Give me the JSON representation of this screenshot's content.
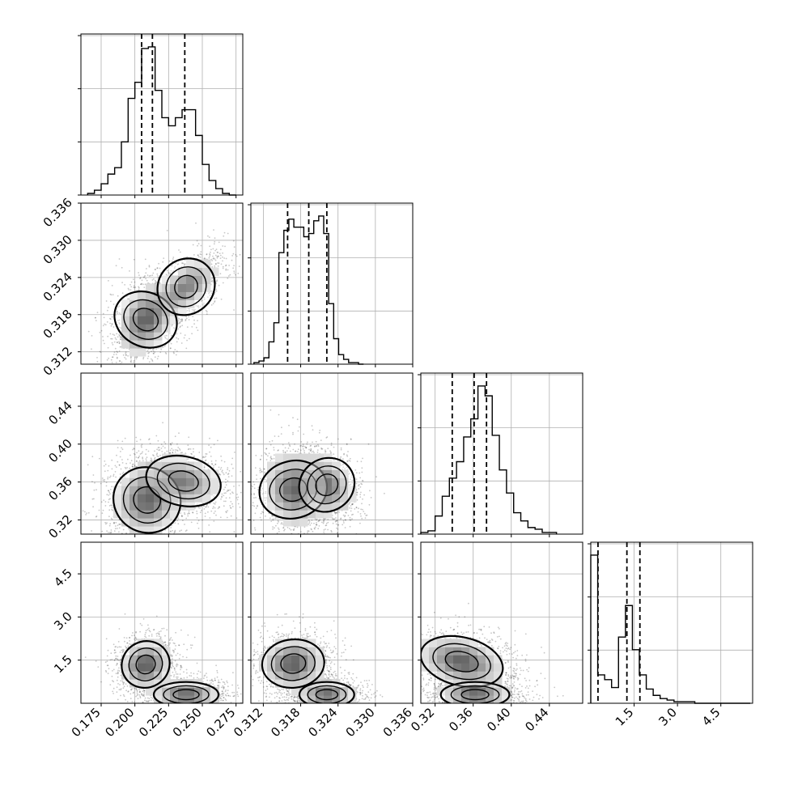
{
  "chart_data": {
    "type": "corner",
    "parameters": [
      {
        "key": "p0",
        "range": [
          0.16,
          0.28
        ],
        "ticks": [
          0.175,
          0.2,
          0.225,
          0.25,
          0.275
        ],
        "tick_labels": [
          "0.175",
          "0.200",
          "0.225",
          "0.250",
          "0.275"
        ],
        "quantiles": [
          0.205,
          0.213,
          0.237
        ]
      },
      {
        "key": "p1",
        "range": [
          0.31,
          0.336
        ],
        "ticks": [
          0.312,
          0.318,
          0.324,
          0.33,
          0.336
        ],
        "tick_labels": [
          "0.312",
          "0.318",
          "0.324",
          "0.330",
          "0.336"
        ],
        "quantiles": [
          0.3159,
          0.3193,
          0.3222
        ]
      },
      {
        "key": "p2",
        "range": [
          0.305,
          0.475
        ],
        "ticks": [
          0.32,
          0.36,
          0.4,
          0.44
        ],
        "tick_labels": [
          "0.32",
          "0.36",
          "0.40",
          "0.44"
        ],
        "quantiles": [
          0.338,
          0.361,
          0.374
        ]
      },
      {
        "key": "p3",
        "range": [
          0.0,
          5.6
        ],
        "ticks": [
          1.5,
          3.0,
          4.5
        ],
        "tick_labels": [
          "1.5",
          "3.0",
          "4.5"
        ],
        "quantiles": [
          0.25,
          1.25,
          1.7
        ]
      }
    ],
    "histograms": [
      {
        "param": 0,
        "bins": [
          0.165,
          0.17,
          0.175,
          0.18,
          0.185,
          0.19,
          0.195,
          0.2,
          0.205,
          0.21,
          0.215,
          0.22,
          0.225,
          0.23,
          0.235,
          0.24,
          0.245,
          0.25,
          0.255,
          0.26,
          0.265,
          0.27,
          0.275
        ],
        "counts": [
          1,
          3,
          7,
          13,
          17,
          33,
          60,
          70,
          91,
          92,
          65,
          48,
          43,
          48,
          53,
          53,
          37,
          19,
          9,
          4,
          1,
          0
        ]
      },
      {
        "param": 1,
        "bins": [
          0.3105,
          0.3113,
          0.3121,
          0.3129,
          0.3137,
          0.3145,
          0.3153,
          0.3161,
          0.3169,
          0.3177,
          0.3185,
          0.3193,
          0.3201,
          0.3209,
          0.3217,
          0.3225,
          0.3233,
          0.3241,
          0.3249,
          0.3257,
          0.3265,
          0.3273,
          0.3281
        ],
        "counts": [
          1,
          2,
          4,
          14,
          26,
          70,
          84,
          91,
          86,
          86,
          80,
          82,
          90,
          93,
          82,
          38,
          16,
          6,
          3,
          1,
          1,
          0
        ]
      },
      {
        "param": 2,
        "bins": [
          0.305,
          0.3125,
          0.32,
          0.3275,
          0.335,
          0.3425,
          0.35,
          0.3575,
          0.365,
          0.3725,
          0.38,
          0.3875,
          0.395,
          0.4025,
          0.41,
          0.4175,
          0.425,
          0.4325,
          0.44,
          0.4475
        ],
        "counts": [
          1,
          2,
          11,
          23,
          34,
          44,
          59,
          70,
          90,
          84,
          60,
          39,
          25,
          13,
          8,
          4,
          3,
          1,
          1
        ]
      },
      {
        "param": 3,
        "bins": [
          0.0,
          0.24,
          0.48,
          0.72,
          0.96,
          1.2,
          1.44,
          1.68,
          1.92,
          2.16,
          2.4,
          2.64,
          2.88,
          3.12,
          3.36,
          3.6,
          3.84,
          4.08,
          4.32,
          4.56,
          4.8,
          5.04,
          5.28,
          5.52
        ],
        "counts": [
          94,
          18,
          15,
          10,
          42,
          62,
          34,
          18,
          9,
          5,
          3,
          2,
          1,
          1,
          1,
          0,
          0,
          0,
          0,
          0,
          0,
          0,
          0
        ]
      }
    ],
    "pairs": [
      {
        "x": 0,
        "y": 1,
        "clusters": [
          {
            "cx": 0.208,
            "cy": 0.3172,
            "sx": 0.01,
            "sy": 0.0026,
            "rho": 0.25,
            "w": 1
          },
          {
            "cx": 0.238,
            "cy": 0.3225,
            "sx": 0.011,
            "sy": 0.0022,
            "rho": 0.55,
            "w": 0.8
          }
        ]
      },
      {
        "x": 0,
        "y": 2,
        "clusters": [
          {
            "cx": 0.209,
            "cy": 0.341,
            "sx": 0.012,
            "sy": 0.018,
            "rho": 0.1,
            "w": 1
          },
          {
            "cx": 0.236,
            "cy": 0.361,
            "sx": 0.014,
            "sy": 0.013,
            "rho": -0.2,
            "w": 0.8
          }
        ]
      },
      {
        "x": 1,
        "y": 2,
        "clusters": [
          {
            "cx": 0.3168,
            "cy": 0.352,
            "sx": 0.0023,
            "sy": 0.018,
            "rho": -0.1,
            "w": 1
          },
          {
            "cx": 0.3222,
            "cy": 0.357,
            "sx": 0.0021,
            "sy": 0.015,
            "rho": -0.25,
            "w": 0.9
          }
        ]
      },
      {
        "x": 0,
        "y": 3,
        "clusters": [
          {
            "cx": 0.208,
            "cy": 1.35,
            "sx": 0.009,
            "sy": 0.4,
            "rho": 0.1,
            "w": 1
          },
          {
            "cx": 0.238,
            "cy": 0.3,
            "sx": 0.012,
            "sy": 0.22,
            "rho": 0,
            "w": 1
          }
        ]
      },
      {
        "x": 1,
        "y": 3,
        "clusters": [
          {
            "cx": 0.3168,
            "cy": 1.38,
            "sx": 0.0025,
            "sy": 0.42,
            "rho": 0.05,
            "w": 1
          },
          {
            "cx": 0.3222,
            "cy": 0.3,
            "sx": 0.0022,
            "sy": 0.22,
            "rho": 0,
            "w": 1
          }
        ]
      },
      {
        "x": 2,
        "y": 3,
        "clusters": [
          {
            "cx": 0.348,
            "cy": 1.45,
            "sx": 0.022,
            "sy": 0.42,
            "rho": -0.3,
            "w": 1
          },
          {
            "cx": 0.362,
            "cy": 0.3,
            "sx": 0.018,
            "sy": 0.22,
            "rho": 0,
            "w": 1
          }
        ]
      }
    ],
    "grid": true,
    "colors": {
      "ink": "#000000",
      "grid": "#b0b0b0",
      "scatter": "#000000"
    }
  }
}
